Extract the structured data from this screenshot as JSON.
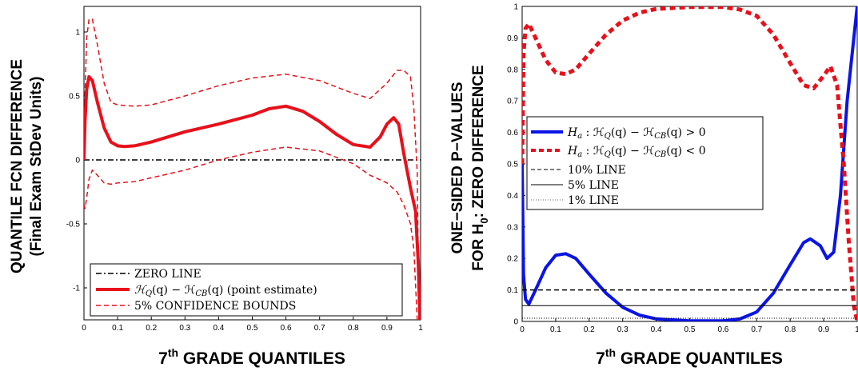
{
  "chart_data": [
    {
      "type": "line",
      "title": "",
      "xlabel": "7th GRADE QUANTILES",
      "xlabel_main": "7",
      "xlabel_sup": "th",
      "xlabel_rest": " GRADE QUANTILES",
      "ylabel_line1": "QUANTILE FCN DIFFERENCE",
      "ylabel_line2": "(Final Exam StDev Units)",
      "xlim": [
        0,
        1
      ],
      "ylim": [
        -1.25,
        1.2
      ],
      "xticks": [
        "0",
        "0.1",
        "0.2",
        "0.3",
        "0.4",
        "0.5",
        "0.6",
        "0.7",
        "0.8",
        "0.9",
        "1"
      ],
      "yticks": [
        "-1",
        "-0.5",
        "0",
        "0.5",
        "1"
      ],
      "grid": false,
      "legend_placement": "bottom-left",
      "series": [
        {
          "name": "ZERO LINE",
          "color": "#000000",
          "style": "dashdot",
          "x": [
            0,
            1
          ],
          "y": [
            0,
            0
          ]
        },
        {
          "name": "ℋ_Q(q) − ℋ_CB(q) (point estimate)",
          "color": "#e8101a",
          "style": "solid-thick",
          "x": [
            0.0,
            0.003,
            0.008,
            0.015,
            0.025,
            0.04,
            0.06,
            0.08,
            0.1,
            0.12,
            0.15,
            0.2,
            0.3,
            0.4,
            0.5,
            0.55,
            0.6,
            0.65,
            0.7,
            0.75,
            0.8,
            0.85,
            0.88,
            0.9,
            0.92,
            0.935,
            0.95,
            0.97,
            0.985,
            0.993,
            0.998
          ],
          "y": [
            0.0,
            0.3,
            0.55,
            0.65,
            0.62,
            0.45,
            0.25,
            0.14,
            0.11,
            0.105,
            0.11,
            0.14,
            0.22,
            0.28,
            0.35,
            0.4,
            0.42,
            0.38,
            0.3,
            0.2,
            0.12,
            0.1,
            0.18,
            0.28,
            0.33,
            0.28,
            0.05,
            -0.22,
            -0.4,
            -0.8,
            -1.25
          ]
        },
        {
          "name": "5% CONFIDENCE BOUNDS",
          "color": "#e8101a",
          "style": "dashed",
          "x": [
            0.0,
            0.003,
            0.008,
            0.015,
            0.025,
            0.04,
            0.06,
            0.08,
            0.1,
            0.15,
            0.2,
            0.3,
            0.4,
            0.5,
            0.6,
            0.7,
            0.8,
            0.85,
            0.9,
            0.93,
            0.95,
            0.97,
            0.98,
            0.99,
            0.995
          ],
          "y": [
            0.0,
            0.5,
            0.95,
            1.1,
            1.1,
            0.9,
            0.6,
            0.45,
            0.43,
            0.42,
            0.43,
            0.5,
            0.58,
            0.64,
            0.67,
            0.62,
            0.52,
            0.48,
            0.6,
            0.7,
            0.7,
            0.65,
            0.4,
            -0.1,
            -1.25
          ]
        },
        {
          "name": "5% CONFIDENCE BOUNDS (lower)",
          "color": "#e8101a",
          "style": "dashed",
          "x": [
            0.0,
            0.003,
            0.008,
            0.015,
            0.025,
            0.04,
            0.06,
            0.08,
            0.1,
            0.15,
            0.2,
            0.3,
            0.4,
            0.5,
            0.6,
            0.7,
            0.8,
            0.85,
            0.9,
            0.93,
            0.95,
            0.97,
            0.98,
            0.99
          ],
          "y": [
            -0.35,
            -0.38,
            -0.3,
            -0.15,
            -0.08,
            -0.12,
            -0.18,
            -0.19,
            -0.18,
            -0.17,
            -0.14,
            -0.08,
            0.0,
            0.06,
            0.1,
            0.07,
            -0.03,
            -0.12,
            -0.18,
            -0.25,
            -0.35,
            -0.5,
            -0.7,
            -1.25
          ]
        }
      ]
    },
    {
      "type": "line",
      "title": "",
      "xlabel": "7th GRADE QUANTILES",
      "xlabel_main": "7",
      "xlabel_sup": "th",
      "xlabel_rest": " GRADE QUANTILES",
      "ylabel_line1": "ONE−SIDED P−VALUES",
      "ylabel_line2_a": "FOR H",
      "ylabel_line2_sub": "0",
      "ylabel_line2_b": ": ZERO DIFFERENCE",
      "xlim": [
        0,
        1
      ],
      "ylim": [
        0,
        1
      ],
      "xticks": [
        "0",
        "0.1",
        "0.2",
        "0.3",
        "0.4",
        "0.5",
        "0.6",
        "0.7",
        "0.8",
        "0.9",
        "1"
      ],
      "yticks": [
        "0",
        "0.1",
        "0.2",
        "0.3",
        "0.4",
        "0.5",
        "0.6",
        "0.7",
        "0.8",
        "0.9",
        "1"
      ],
      "grid": false,
      "legend_placement": "center-left",
      "series": [
        {
          "name": "H_a : ℋ_Q(q) − ℋ_CB(q) > 0",
          "color": "#0a14e6",
          "style": "solid-thick",
          "x": [
            0.0,
            0.004,
            0.01,
            0.02,
            0.04,
            0.07,
            0.1,
            0.13,
            0.16,
            0.2,
            0.25,
            0.3,
            0.35,
            0.4,
            0.5,
            0.6,
            0.65,
            0.7,
            0.75,
            0.8,
            0.84,
            0.86,
            0.89,
            0.91,
            0.93,
            0.95,
            0.97,
            0.985,
            1.0
          ],
          "y": [
            0.5,
            0.15,
            0.07,
            0.055,
            0.1,
            0.17,
            0.21,
            0.215,
            0.2,
            0.15,
            0.09,
            0.045,
            0.02,
            0.008,
            0.002,
            0.002,
            0.008,
            0.03,
            0.09,
            0.18,
            0.25,
            0.262,
            0.24,
            0.2,
            0.22,
            0.4,
            0.7,
            0.85,
            1.0
          ]
        },
        {
          "name": "H_a : ℋ_Q(q) − ℋ_CB(q) < 0",
          "color": "#e8101a",
          "style": "dashed-thick",
          "x": [
            0.0,
            0.004,
            0.01,
            0.02,
            0.04,
            0.07,
            0.1,
            0.13,
            0.16,
            0.2,
            0.25,
            0.3,
            0.35,
            0.4,
            0.5,
            0.6,
            0.65,
            0.7,
            0.75,
            0.8,
            0.84,
            0.87,
            0.9,
            0.92,
            0.94,
            0.96,
            0.975,
            0.99,
            1.0
          ],
          "y": [
            0.5,
            0.85,
            0.93,
            0.945,
            0.9,
            0.83,
            0.79,
            0.785,
            0.8,
            0.85,
            0.91,
            0.955,
            0.98,
            0.992,
            0.998,
            0.998,
            0.99,
            0.97,
            0.91,
            0.82,
            0.75,
            0.74,
            0.78,
            0.81,
            0.75,
            0.5,
            0.25,
            0.05,
            0.0
          ]
        },
        {
          "name": "10% LINE",
          "color": "#000000",
          "style": "dashed",
          "x": [
            0,
            1
          ],
          "y": [
            0.1,
            0.1
          ]
        },
        {
          "name": "5% LINE",
          "color": "#000000",
          "style": "solid",
          "x": [
            0,
            1
          ],
          "y": [
            0.05,
            0.05
          ]
        },
        {
          "name": "1% LINE",
          "color": "#000000",
          "style": "dotted",
          "x": [
            0,
            1
          ],
          "y": [
            0.01,
            0.01
          ]
        }
      ]
    }
  ],
  "legend1": {
    "zero": "ZERO LINE",
    "point_a": "ℋ",
    "point_b": "Q",
    "point_c": "(q) − ℋ",
    "point_d": "CB",
    "point_e": "(q) (point estimate)",
    "conf": "5% CONFIDENCE BOUNDS"
  },
  "legend2": {
    "pos_a": "H",
    "pos_b": "a",
    "pos_c": " : ℋ",
    "pos_d": "Q",
    "pos_e": "(q) − ℋ",
    "pos_f": "CB",
    "pos_g": "(q) > 0",
    "neg_g": "(q) < 0",
    "ten": "10% LINE",
    "five": "5% LINE",
    "one": "1% LINE"
  }
}
